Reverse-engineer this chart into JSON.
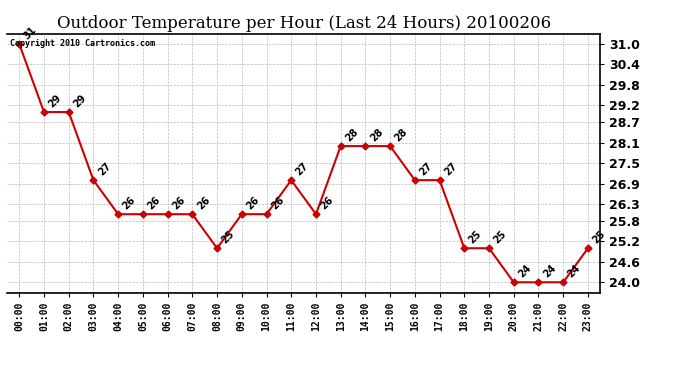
{
  "title": "Outdoor Temperature per Hour (Last 24 Hours) 20100206",
  "copyright_text": "Copyright 2010 Cartronics.com",
  "hours": [
    "00:00",
    "01:00",
    "02:00",
    "03:00",
    "04:00",
    "05:00",
    "06:00",
    "07:00",
    "08:00",
    "09:00",
    "10:00",
    "11:00",
    "12:00",
    "13:00",
    "14:00",
    "15:00",
    "16:00",
    "17:00",
    "18:00",
    "19:00",
    "20:00",
    "21:00",
    "22:00",
    "23:00"
  ],
  "temps": [
    31,
    29,
    29,
    27,
    26,
    26,
    26,
    26,
    25,
    26,
    26,
    27,
    26,
    28,
    28,
    28,
    27,
    27,
    25,
    25,
    24,
    24,
    24,
    25
  ],
  "y_ticks": [
    24.0,
    24.6,
    25.2,
    25.8,
    26.3,
    26.9,
    27.5,
    28.1,
    28.7,
    29.2,
    29.8,
    30.4,
    31.0
  ],
  "line_color": "#cc0000",
  "marker_color": "#cc0000",
  "bg_color": "#ffffff",
  "grid_color": "#bbbbbb",
  "title_fontsize": 12,
  "label_fontsize": 7,
  "tick_fontsize": 7,
  "ytick_fontsize": 9
}
